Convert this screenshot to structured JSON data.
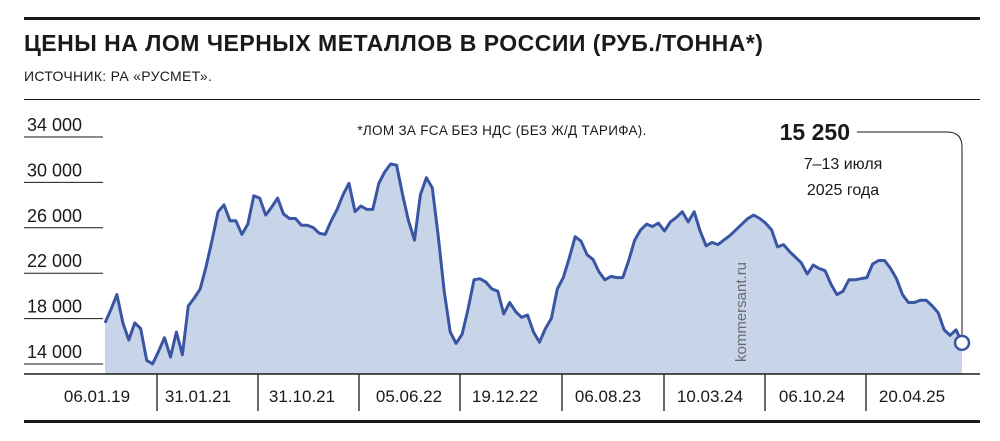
{
  "title": "ЦЕНЫ НА ЛОМ ЧЕРНЫХ МЕТАЛЛОВ В РОССИИ (РУБ./ТОННА*)",
  "subtitle": "ИСТОЧНИК: РА «РУСМЕТ».",
  "note": "*ЛОМ ЗА FCA БЕЗ НДС (БЕЗ Ж/Д ТАРИФА).",
  "watermark": "kommersant.ru",
  "callout": {
    "value": "15 250",
    "date_line1": "7–13 июля",
    "date_line2": "2025 года"
  },
  "colors": {
    "line": "#3a55a3",
    "fill": "#c8d5e8",
    "text": "#1a1a1a"
  },
  "chart_data": {
    "type": "area",
    "x_ticks": [
      "06.01.19",
      "31.01.21",
      "31.10.21",
      "05.06.22",
      "19.12.22",
      "06.08.23",
      "10.03.24",
      "06.10.24",
      "20.04.25"
    ],
    "y_ticks": [
      "34 000",
      "30 000",
      "26 000",
      "22 000",
      "18 000",
      "14 000"
    ],
    "ylim": [
      13000,
      35000
    ],
    "last_point": {
      "label": "7–13 июля 2025 года",
      "value": 15250
    },
    "series": [
      {
        "values": [
          17000,
          18200,
          19500,
          17000,
          15500,
          17000,
          16500,
          13700,
          13400,
          14500,
          15700,
          14000,
          16200,
          14200,
          18500,
          19200,
          20000,
          22000,
          24300,
          26800,
          27400,
          26000,
          26000,
          24800,
          25700,
          28200,
          28000,
          26500,
          27200,
          28000,
          26600,
          26200,
          26200,
          25600,
          25600,
          25400,
          24900,
          24800,
          26000,
          27000,
          28300,
          29300,
          26800,
          27300,
          27000,
          27000,
          29300,
          30300,
          31000,
          30900,
          28300,
          26000,
          24300,
          28300,
          29800,
          28900,
          24600,
          19800,
          16200,
          15200,
          16000,
          18200,
          20800,
          20900,
          20600,
          20000,
          19800,
          17800,
          18800,
          18000,
          17500,
          17700,
          16200,
          15300,
          16500,
          17400,
          20000,
          21000,
          22700,
          24600,
          24200,
          23000,
          22600,
          21500,
          20800,
          21100,
          21000,
          21000,
          22500,
          24300,
          25200,
          25700,
          25500,
          25800,
          25100,
          25900,
          26300,
          26800,
          25900,
          26800,
          25100,
          23800,
          24100,
          23900,
          24300,
          24700,
          25200,
          25700,
          26200,
          26500,
          26200,
          25800,
          25200,
          23700,
          23900,
          23300,
          22800,
          22300,
          21300,
          22100,
          21800,
          21600,
          20400,
          19500,
          19800,
          20800,
          20800,
          20900,
          21000,
          22200,
          22500,
          22500,
          21800,
          20900,
          19500,
          18800,
          18800,
          19000,
          19000,
          18500,
          17900,
          16400,
          15900,
          16400,
          15250
        ]
      }
    ]
  }
}
